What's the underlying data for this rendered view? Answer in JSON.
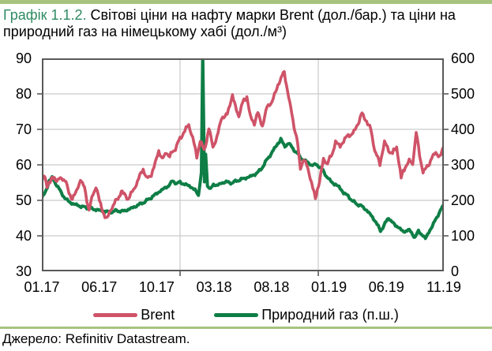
{
  "page": {
    "title_prefix": "Графік 1.1.2.",
    "title_line1": "Світові ціни на нафту марки Brent (дол./бар.) та ціни на",
    "title_line2": "природний газ на німецькому хабі (дол./м³)",
    "source": "Джерело: Refinitiv Datastream."
  },
  "colors": {
    "accent_bar": "#a6c47e",
    "title_accent": "#2e8b62",
    "grid": "#c9c9c9",
    "axis_border": "#595959",
    "text": "#000000"
  },
  "chart_data": {
    "type": "line",
    "title": "Світові ціни на нафту марки Brent (дол./бар.) та ціни на природний газ на німецькому хабі (дол./м³)",
    "grid": true,
    "legend_position": "bottom",
    "x_axis": {
      "tick_labels": [
        "01.17",
        "06.17",
        "10.17",
        "03.18",
        "08.18",
        "01.19",
        "06.19",
        "11.19"
      ],
      "x_unit": "months since 01.2017 (0 = Jan 2017)",
      "range": [
        0,
        34.9
      ],
      "vertical_gridline_months": [
        12,
        24
      ],
      "bottom_tick_months": [
        12,
        24
      ]
    },
    "y_left": {
      "ticks": [
        30,
        40,
        50,
        60,
        70,
        80,
        90
      ],
      "range": [
        30,
        90
      ],
      "series": "Brent"
    },
    "y_right": {
      "ticks": [
        0,
        100,
        200,
        300,
        400,
        500,
        600
      ],
      "range": [
        0,
        600
      ],
      "series": "Природний газ"
    },
    "series": [
      {
        "name": "Brent",
        "axis": "left",
        "color": "#cf5368",
        "points": [
          [
            0,
            55.2
          ],
          [
            0.2,
            56.9
          ],
          [
            0.45,
            54.3
          ],
          [
            0.8,
            55.6
          ],
          [
            1.1,
            56.4
          ],
          [
            1.4,
            55.6
          ],
          [
            1.8,
            56.3
          ],
          [
            2.1,
            55.2
          ],
          [
            2.35,
            51.8
          ],
          [
            2.65,
            50.7
          ],
          [
            3.0,
            52.3
          ],
          [
            3.35,
            56.0
          ],
          [
            3.7,
            53.4
          ],
          [
            4.1,
            47.3
          ],
          [
            4.35,
            50.6
          ],
          [
            4.7,
            54.0
          ],
          [
            5.0,
            49.9
          ],
          [
            5.3,
            46.8
          ],
          [
            5.65,
            44.5
          ],
          [
            6.0,
            47.7
          ],
          [
            6.4,
            49.5
          ],
          [
            6.9,
            52.4
          ],
          [
            7.15,
            51.7
          ],
          [
            7.5,
            50.2
          ],
          [
            7.85,
            52.3
          ],
          [
            8.2,
            54.6
          ],
          [
            8.8,
            59.0
          ],
          [
            9.1,
            55.9
          ],
          [
            9.5,
            57.4
          ],
          [
            9.85,
            60.3
          ],
          [
            10.15,
            64.2
          ],
          [
            10.45,
            61.4
          ],
          [
            10.8,
            63.6
          ],
          [
            11.1,
            62.4
          ],
          [
            11.5,
            64.2
          ],
          [
            11.9,
            66.7
          ],
          [
            12.3,
            69.1
          ],
          [
            12.75,
            71.0
          ],
          [
            13.1,
            67.8
          ],
          [
            13.45,
            62.3
          ],
          [
            13.75,
            66.8
          ],
          [
            14.1,
            63.8
          ],
          [
            14.5,
            70.3
          ],
          [
            14.85,
            64.8
          ],
          [
            15.2,
            67.7
          ],
          [
            15.6,
            73.2
          ],
          [
            16.1,
            74.2
          ],
          [
            16.55,
            79.6
          ],
          [
            16.8,
            76.2
          ],
          [
            17.1,
            74.0
          ],
          [
            17.45,
            77.6
          ],
          [
            17.8,
            79.2
          ],
          [
            18.1,
            73.6
          ],
          [
            18.45,
            71.8
          ],
          [
            18.75,
            74.6
          ],
          [
            19.15,
            70.9
          ],
          [
            19.55,
            76.4
          ],
          [
            20.0,
            77.7
          ],
          [
            20.5,
            82.6
          ],
          [
            21.05,
            86.2
          ],
          [
            21.35,
            80.5
          ],
          [
            21.6,
            76.0
          ],
          [
            21.9,
            71.0
          ],
          [
            22.2,
            66.3
          ],
          [
            22.45,
            58.9
          ],
          [
            22.7,
            61.6
          ],
          [
            23.0,
            60.0
          ],
          [
            23.3,
            56.4
          ],
          [
            23.75,
            50.5
          ],
          [
            24.1,
            55.5
          ],
          [
            24.45,
            61.5
          ],
          [
            24.8,
            60.5
          ],
          [
            25.2,
            63.0
          ],
          [
            25.5,
            66.5
          ],
          [
            25.9,
            65.2
          ],
          [
            26.3,
            67.3
          ],
          [
            26.7,
            68.5
          ],
          [
            27.1,
            69.0
          ],
          [
            27.45,
            71.7
          ],
          [
            27.8,
            74.5
          ],
          [
            28.2,
            72.2
          ],
          [
            28.55,
            70.0
          ],
          [
            28.9,
            64.2
          ],
          [
            29.35,
            60.2
          ],
          [
            29.75,
            66.4
          ],
          [
            30.1,
            64.2
          ],
          [
            30.45,
            63.3
          ],
          [
            30.8,
            65.0
          ],
          [
            31.2,
            56.4
          ],
          [
            31.55,
            59.6
          ],
          [
            31.9,
            61.0
          ],
          [
            32.2,
            60.1
          ],
          [
            32.5,
            69.0
          ],
          [
            32.8,
            62.8
          ],
          [
            33.1,
            57.9
          ],
          [
            33.45,
            59.4
          ],
          [
            33.85,
            61.9
          ],
          [
            34.2,
            63.4
          ],
          [
            34.55,
            62.2
          ],
          [
            34.9,
            64.8
          ]
        ]
      },
      {
        "name": "Природний газ (п.ш.)",
        "axis": "right",
        "color": "#0e7e46",
        "points": [
          [
            0,
            208
          ],
          [
            0.3,
            222
          ],
          [
            0.65,
            256
          ],
          [
            0.9,
            263
          ],
          [
            1.2,
            248
          ],
          [
            1.6,
            226
          ],
          [
            2.0,
            206
          ],
          [
            2.5,
            193
          ],
          [
            3.0,
            187
          ],
          [
            3.5,
            182
          ],
          [
            4.0,
            179
          ],
          [
            4.5,
            175
          ],
          [
            5.0,
            172
          ],
          [
            5.5,
            169
          ],
          [
            6.0,
            167
          ],
          [
            6.5,
            171
          ],
          [
            7.0,
            169
          ],
          [
            7.5,
            174
          ],
          [
            8.0,
            181
          ],
          [
            8.5,
            189
          ],
          [
            9.0,
            197
          ],
          [
            9.5,
            208
          ],
          [
            10.0,
            220
          ],
          [
            10.5,
            231
          ],
          [
            11.0,
            241
          ],
          [
            11.35,
            256
          ],
          [
            11.7,
            247
          ],
          [
            12.0,
            251
          ],
          [
            12.4,
            245
          ],
          [
            12.8,
            241
          ],
          [
            13.3,
            229
          ],
          [
            13.6,
            214
          ],
          [
            13.85,
            278
          ],
          [
            13.97,
            620
          ],
          [
            14.12,
            252
          ],
          [
            14.22,
            330
          ],
          [
            14.38,
            240
          ],
          [
            14.65,
            231
          ],
          [
            14.9,
            246
          ],
          [
            15.2,
            241
          ],
          [
            15.6,
            249
          ],
          [
            16.0,
            252
          ],
          [
            16.5,
            249
          ],
          [
            17.0,
            256
          ],
          [
            17.5,
            261
          ],
          [
            18.0,
            266
          ],
          [
            18.5,
            273
          ],
          [
            19.0,
            286
          ],
          [
            19.5,
            312
          ],
          [
            20.0,
            336
          ],
          [
            20.4,
            356
          ],
          [
            20.75,
            372
          ],
          [
            21.1,
            351
          ],
          [
            21.4,
            362
          ],
          [
            21.8,
            346
          ],
          [
            22.2,
            331
          ],
          [
            22.6,
            316
          ],
          [
            23.0,
            309
          ],
          [
            23.4,
            299
          ],
          [
            23.8,
            301
          ],
          [
            24.1,
            295
          ],
          [
            24.4,
            284
          ],
          [
            24.7,
            269
          ],
          [
            25.0,
            256
          ],
          [
            25.4,
            246
          ],
          [
            25.8,
            238
          ],
          [
            26.2,
            221
          ],
          [
            26.6,
            212
          ],
          [
            27.0,
            197
          ],
          [
            27.4,
            189
          ],
          [
            27.8,
            183
          ],
          [
            28.2,
            172
          ],
          [
            28.6,
            157
          ],
          [
            29.0,
            139
          ],
          [
            29.4,
            114
          ],
          [
            29.7,
            129
          ],
          [
            30.1,
            151
          ],
          [
            30.4,
            139
          ],
          [
            30.7,
            129
          ],
          [
            31.0,
            124
          ],
          [
            31.4,
            110
          ],
          [
            31.8,
            118
          ],
          [
            32.1,
            108
          ],
          [
            32.4,
            96
          ],
          [
            32.7,
            113
          ],
          [
            33.0,
            104
          ],
          [
            33.3,
            92
          ],
          [
            33.6,
            111
          ],
          [
            33.9,
            127
          ],
          [
            34.2,
            147
          ],
          [
            34.6,
            171
          ],
          [
            34.9,
            186
          ]
        ]
      }
    ]
  }
}
